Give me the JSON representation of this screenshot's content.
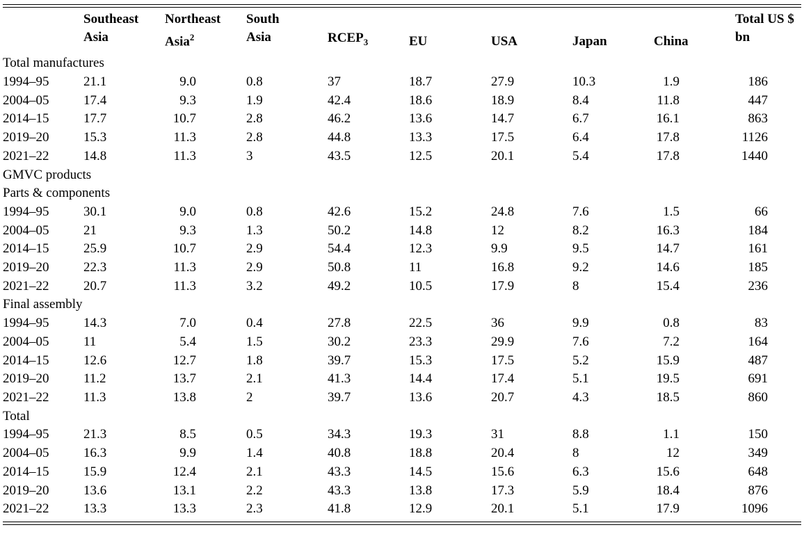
{
  "headers": {
    "southeast_asia": [
      "Southeast",
      "Asia"
    ],
    "northeast_asia": [
      "Northeast",
      "Asia"
    ],
    "northeast_sup": "2",
    "south_asia": [
      "South",
      "Asia"
    ],
    "rcep": "RCEP",
    "rcep_sub": "3",
    "eu": "EU",
    "usa": "USA",
    "japan": "Japan",
    "china": "China",
    "total": [
      "Total US $",
      "bn"
    ]
  },
  "sections": [
    {
      "label": "Total manufactures",
      "rows": [
        [
          "1994–95",
          "21.1",
          "9.0",
          "0.8",
          "37",
          "18.7",
          "27.9",
          "10.3",
          "1.9",
          "186"
        ],
        [
          "2004–05",
          "17.4",
          "9.3",
          "1.9",
          "42.4",
          "18.6",
          "18.9",
          "8.4",
          "11.8",
          "447"
        ],
        [
          "2014–15",
          "17.7",
          "10.7",
          "2.8",
          "46.2",
          "13.6",
          "14.7",
          "6.7",
          "16.1",
          "863"
        ],
        [
          "2019–20",
          "15.3",
          "11.3",
          "2.8",
          "44.8",
          "13.3",
          "17.5",
          "6.4",
          "17.8",
          "1126"
        ],
        [
          "2021–22",
          "14.8",
          "11.3",
          "3",
          "43.5",
          "12.5",
          "20.1",
          "5.4",
          "17.8",
          "1440"
        ]
      ]
    },
    {
      "label": "GMVC products",
      "rows": []
    },
    {
      "label": "Parts & components",
      "rows": [
        [
          "1994–95",
          "30.1",
          "9.0",
          "0.8",
          "42.6",
          "15.2",
          "24.8",
          "7.6",
          "1.5",
          "66"
        ],
        [
          "2004–05",
          "21",
          "9.3",
          "1.3",
          "50.2",
          "14.8",
          "12",
          "8.2",
          "16.3",
          "184"
        ],
        [
          "2014–15",
          "25.9",
          "10.7",
          "2.9",
          "54.4",
          "12.3",
          "9.9",
          "9.5",
          "14.7",
          "161"
        ],
        [
          "2019–20",
          "22.3",
          "11.3",
          "2.9",
          "50.8",
          "11",
          "16.8",
          "9.2",
          "14.6",
          "185"
        ],
        [
          "2021–22",
          "20.7",
          "11.3",
          "3.2",
          "49.2",
          "10.5",
          "17.9",
          "8",
          "15.4",
          "236"
        ]
      ]
    },
    {
      "label": "Final assembly",
      "rows": [
        [
          "1994–95",
          "14.3",
          "7.0",
          "0.4",
          "27.8",
          "22.5",
          "36",
          "9.9",
          "0.8",
          "83"
        ],
        [
          "2004–05",
          "11",
          "5.4",
          "1.5",
          "30.2",
          "23.3",
          "29.9",
          "7.6",
          "7.2",
          "164"
        ],
        [
          "2014–15",
          "12.6",
          "12.7",
          "1.8",
          "39.7",
          "15.3",
          "17.5",
          "5.2",
          "15.9",
          "487"
        ],
        [
          "2019–20",
          "11.2",
          "13.7",
          "2.1",
          "41.3",
          "14.4",
          "17.4",
          "5.1",
          "19.5",
          "691"
        ],
        [
          "2021–22",
          "11.3",
          "13.8",
          "2",
          "39.7",
          "13.6",
          "20.7",
          "4.3",
          "18.5",
          "860"
        ]
      ]
    },
    {
      "label": "Total",
      "rows": [
        [
          "1994–95",
          "21.3",
          "8.5",
          "0.5",
          "34.3",
          "19.3",
          "31",
          "8.8",
          "1.1",
          "150"
        ],
        [
          "2004–05",
          "16.3",
          "9.9",
          "1.4",
          "40.8",
          "18.8",
          "20.4",
          "8",
          "12",
          "349"
        ],
        [
          "2014–15",
          "15.9",
          "12.4",
          "2.1",
          "43.3",
          "14.5",
          "15.6",
          "6.3",
          "15.6",
          "648"
        ],
        [
          "2019–20",
          "13.6",
          "13.1",
          "2.2",
          "43.3",
          "13.8",
          "17.3",
          "5.9",
          "18.4",
          "876"
        ],
        [
          "2021–22",
          "13.3",
          "13.3",
          "2.3",
          "41.8",
          "12.9",
          "20.1",
          "5.1",
          "17.9",
          "1096"
        ]
      ]
    }
  ]
}
